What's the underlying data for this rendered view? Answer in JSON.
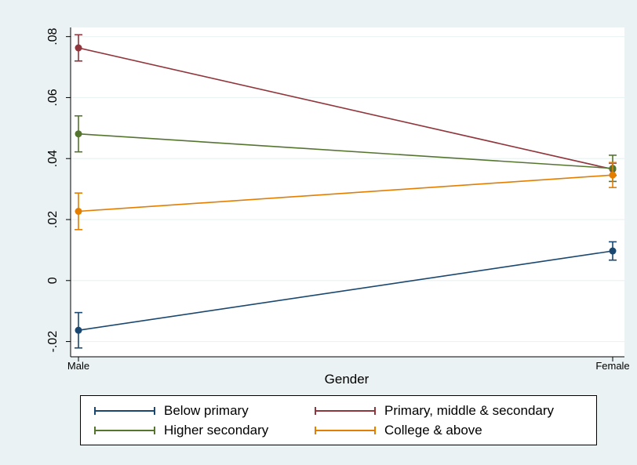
{
  "chart_data": {
    "type": "line",
    "title": "",
    "xlabel": "Gender",
    "ylabel": "",
    "categories": [
      "Male",
      "Female"
    ],
    "ylim": [
      -0.025,
      0.083
    ],
    "yticks": [
      -0.02,
      0,
      0.02,
      0.04,
      0.06,
      0.08
    ],
    "ytick_labels": [
      "-.02",
      "0",
      ".02",
      ".04",
      ".06",
      ".08"
    ],
    "grid": true,
    "legend_position": "bottom",
    "series": [
      {
        "name": "Below primary",
        "color": "#1a476f",
        "values": [
          -0.0163,
          0.0097
        ],
        "ci_low": [
          -0.0221,
          0.0067
        ],
        "ci_high": [
          -0.0105,
          0.0127
        ]
      },
      {
        "name": "Primary, middle & secondary",
        "color": "#90353b",
        "values": [
          0.0763,
          0.0365
        ],
        "ci_low": [
          0.072,
          0.0345
        ],
        "ci_high": [
          0.0806,
          0.0385
        ]
      },
      {
        "name": "Higher secondary",
        "color": "#55752f",
        "values": [
          0.0481,
          0.0368
        ],
        "ci_low": [
          0.0422,
          0.0325
        ],
        "ci_high": [
          0.054,
          0.0411
        ]
      },
      {
        "name": "College & above",
        "color": "#e37e00",
        "values": [
          0.0227,
          0.0346
        ],
        "ci_low": [
          0.0167,
          0.0305
        ],
        "ci_high": [
          0.0287,
          0.0387
        ]
      }
    ]
  }
}
